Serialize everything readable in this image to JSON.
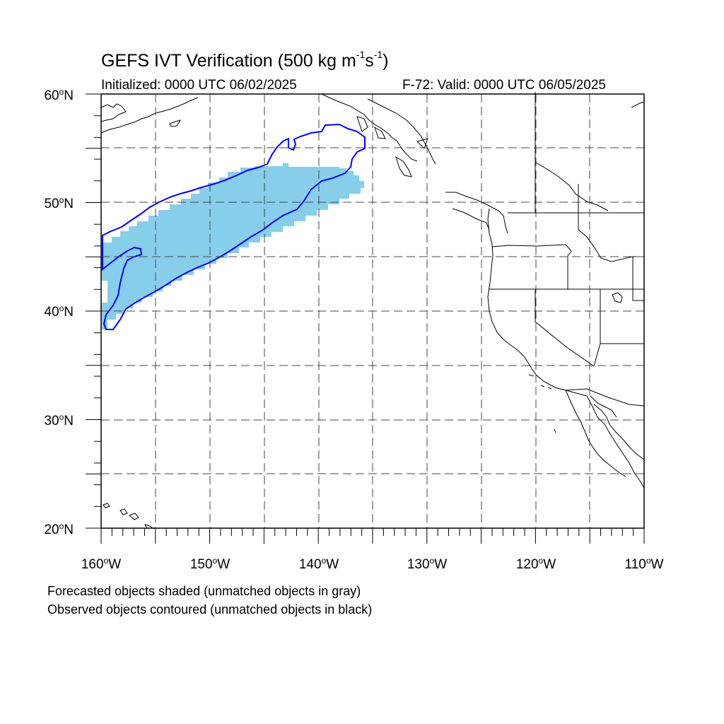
{
  "title_main": "GEFS IVT Verification (500 kg m",
  "title_sup1": "-1",
  "title_mid": "s",
  "title_sup2": "-1",
  "title_end": ")",
  "initialized": "Initialized: 0000 UTC 06/02/2025",
  "valid": "F-72: Valid: 0000 UTC 06/05/2025",
  "footnote_forecast": "Forecasted objects shaded (unmatched objects in gray)",
  "footnote_observed": "Observed objects contoured (unmatched objects in black)",
  "lat_labels": [
    {
      "deg": "20",
      "suffix": "N"
    },
    {
      "deg": "30",
      "suffix": "N"
    },
    {
      "deg": "40",
      "suffix": "N"
    },
    {
      "deg": "50",
      "suffix": "N"
    },
    {
      "deg": "60",
      "suffix": "N"
    }
  ],
  "lon_labels": [
    {
      "deg": "160",
      "suffix": "W"
    },
    {
      "deg": "150",
      "suffix": "W"
    },
    {
      "deg": "140",
      "suffix": "W"
    },
    {
      "deg": "130",
      "suffix": "W"
    },
    {
      "deg": "120",
      "suffix": "W"
    },
    {
      "deg": "110",
      "suffix": "W"
    }
  ],
  "colors": {
    "forecast_fill": "#87ceeb",
    "observed_contour": "#0000ff",
    "grid": "#444444",
    "coast": "#000000"
  }
}
